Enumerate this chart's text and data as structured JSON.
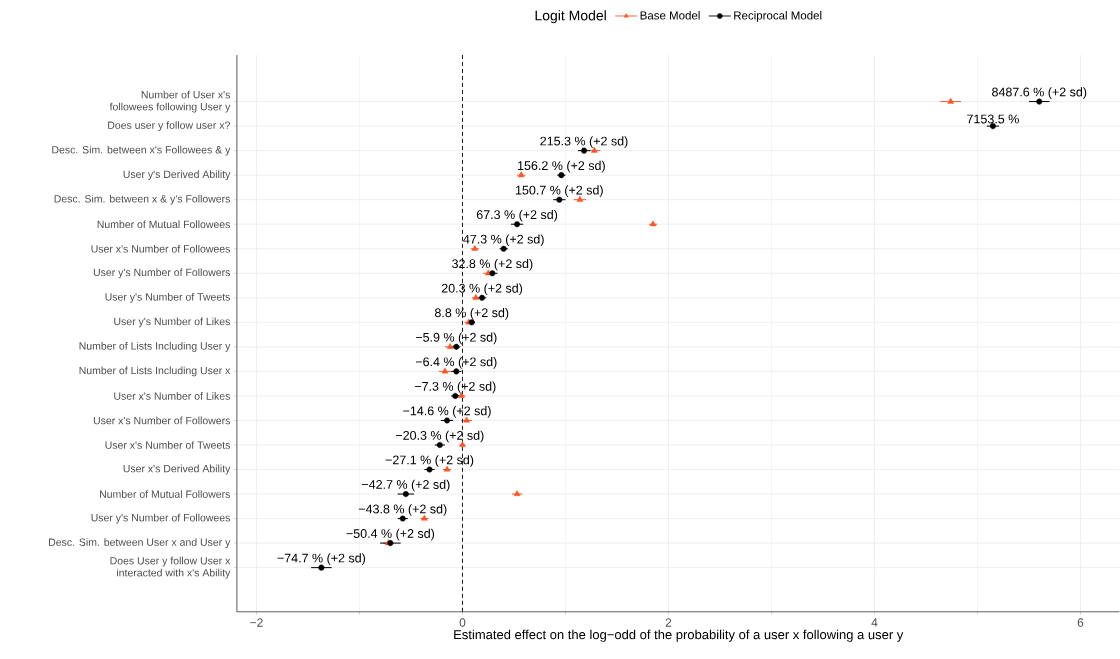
{
  "chart_data": {
    "type": "scatter",
    "orientation": "horizontal",
    "categories": [
      "Number of User x's followees following User y",
      "Does user y follow user x?",
      "Desc. Sim. between x's Followees & y",
      "User y's Derived Ability",
      "Desc. Sim. between x & y's Followers",
      "Number of Mutual Followees",
      "User x's Number of Followees",
      "User y's Number of Followers",
      "User y's Number of Tweets",
      "User y's Number of Likes",
      "Number of Lists Including User y",
      "Number of Lists Including User x",
      "User x's Number of Likes",
      "User x's Number of Followers",
      "User x's Number of Tweets",
      "User x's Derived Ability",
      "Number of Mutual Followers",
      "User y's Number of Followees",
      "Desc. Sim. between User x and User y",
      "Does User y follow User x interacted with x's Ability"
    ],
    "series": [
      {
        "name": "Base Model",
        "color": "#f4592b",
        "marker": "triangle",
        "values": [
          4.74,
          null,
          1.28,
          0.57,
          1.14,
          1.85,
          0.12,
          0.25,
          0.13,
          0.06,
          -0.12,
          -0.17,
          -0.01,
          0.04,
          0.0,
          -0.15,
          0.53,
          -0.37,
          -0.72,
          null
        ],
        "errors": [
          0.1,
          null,
          0.06,
          0.04,
          0.06,
          0.04,
          0.04,
          0.05,
          0.04,
          0.04,
          0.05,
          0.06,
          0.04,
          0.05,
          0.03,
          0.04,
          0.05,
          0.04,
          0.05,
          null
        ]
      },
      {
        "name": "Reciprocal Model",
        "color": "#000000",
        "marker": "circle",
        "values": [
          5.6,
          5.15,
          1.18,
          0.96,
          0.94,
          0.53,
          0.4,
          0.29,
          0.19,
          0.09,
          -0.06,
          -0.06,
          -0.07,
          -0.15,
          -0.22,
          -0.32,
          -0.55,
          -0.58,
          -0.7,
          -1.37
        ],
        "errors": [
          0.1,
          0.06,
          0.06,
          0.04,
          0.06,
          0.06,
          0.04,
          0.05,
          0.04,
          0.03,
          0.04,
          0.05,
          0.04,
          0.06,
          0.05,
          0.05,
          0.08,
          0.05,
          0.1,
          0.1
        ]
      }
    ],
    "annotations": [
      {
        "text": "8487.6 % (+2 sd)",
        "x": 5.6,
        "y": "Number of User x's followees following User y"
      },
      {
        "text": "7153.5 %",
        "x": 5.15,
        "y": "Does user y follow user x?"
      },
      {
        "text": "215.3 % (+2 sd)",
        "x": 1.18,
        "y": "Desc. Sim. between x's Followees & y"
      },
      {
        "text": "156.2 % (+2 sd)",
        "x": 0.96,
        "y": "User y's Derived Ability"
      },
      {
        "text": "150.7 % (+2 sd)",
        "x": 0.94,
        "y": "Desc. Sim. between x & y's Followers"
      },
      {
        "text": "67.3 % (+2 sd)",
        "x": 0.53,
        "y": "Number of Mutual Followees"
      },
      {
        "text": "47.3 % (+2 sd)",
        "x": 0.4,
        "y": "User x's Number of Followees"
      },
      {
        "text": "32.8 % (+2 sd)",
        "x": 0.29,
        "y": "User y's Number of Followers"
      },
      {
        "text": "20.3 % (+2 sd)",
        "x": 0.19,
        "y": "User y's Number of Tweets"
      },
      {
        "text": "8.8 % (+2 sd)",
        "x": 0.09,
        "y": "User y's Number of Likes"
      },
      {
        "text": "−5.9 % (+2 sd)",
        "x": -0.06,
        "y": "Number of Lists Including User y"
      },
      {
        "text": "−6.4 % (+2 sd)",
        "x": -0.06,
        "y": "Number of Lists Including User x"
      },
      {
        "text": "−7.3 % (+2 sd)",
        "x": -0.07,
        "y": "User x's Number of Likes"
      },
      {
        "text": "−14.6 % (+2 sd)",
        "x": -0.15,
        "y": "User x's Number of Followers"
      },
      {
        "text": "−20.3 % (+2 sd)",
        "x": -0.22,
        "y": "User x's Number of Tweets"
      },
      {
        "text": "−27.1 % (+2 sd)",
        "x": -0.32,
        "y": "User x's Derived Ability"
      },
      {
        "text": "−42.7 % (+2 sd)",
        "x": -0.55,
        "y": "Number of Mutual Followers"
      },
      {
        "text": "−43.8 % (+2 sd)",
        "x": -0.58,
        "y": "User y's Number of Followees"
      },
      {
        "text": "−50.4 % (+2 sd)",
        "x": -0.7,
        "y": "Desc. Sim. between User x and User y"
      },
      {
        "text": "−74.7 % (+2 sd)",
        "x": -1.37,
        "y": "Does User y follow User x interacted with x's Ability"
      }
    ],
    "xlabel": "Estimated effect on the log−odd of the probability of a user x following a user y",
    "xlim": [
      -2.19,
      6.38
    ],
    "xticks": [
      {
        "value": -2,
        "label": "−2"
      },
      0,
      2,
      4,
      6
    ],
    "ref_lines": [
      {
        "axis": "x",
        "value": 0,
        "line_style": "dashed",
        "color": "#000000"
      }
    ],
    "grid": true,
    "legend": "top",
    "legend_title": "Logit Model"
  }
}
